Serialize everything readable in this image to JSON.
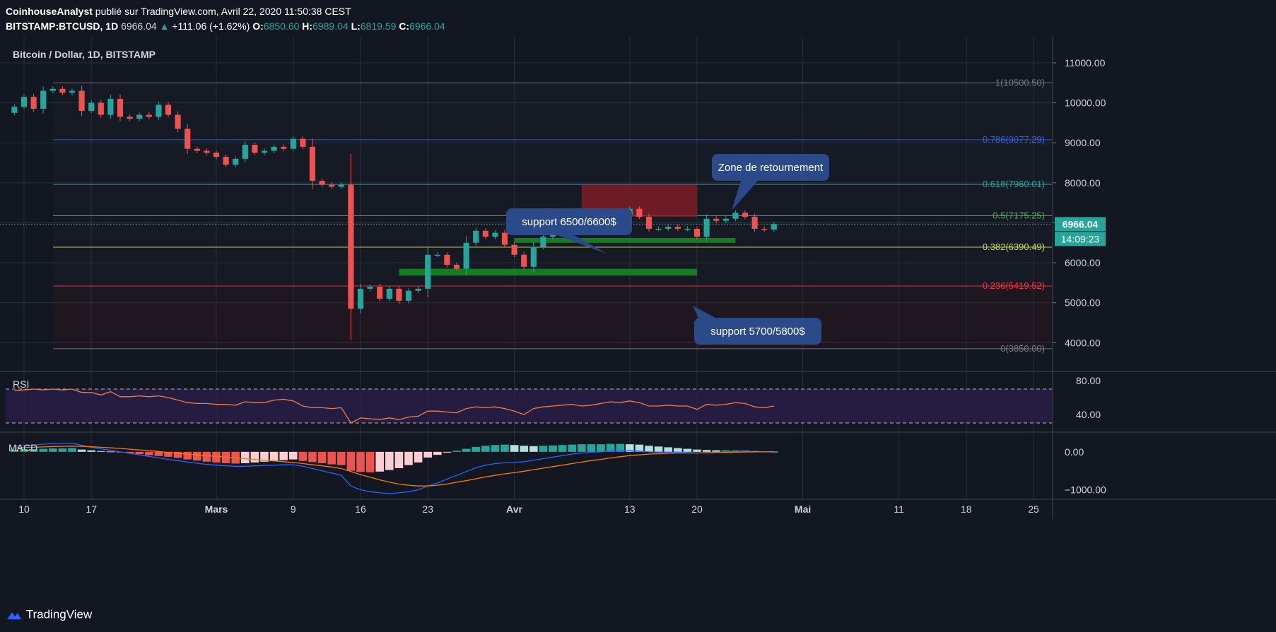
{
  "header": {
    "author": "CoinhouseAnalyst",
    "published_text": "publié sur TradingView.com, Avril 22, 2020 11:50:38 CEST",
    "symbol": "BITSTAMP:BTCUSD, 1D",
    "last_price": "6966.04",
    "change": "+111.06 (+1.62%)",
    "o_label": "O:",
    "o": "6850.60",
    "h_label": "H:",
    "h": "6989.04",
    "l_label": "L:",
    "l": "6819.59",
    "c_label": "C:",
    "c": "6966.04"
  },
  "footer": {
    "brand": "TradingView"
  },
  "chart_data": {
    "type": "candlestick",
    "title": "Bitcoin / Dollar, 1D, BITSTAMP",
    "price_axis": {
      "ticks": [
        4000,
        5000,
        6000,
        7000,
        8000,
        9000,
        10000,
        11000
      ],
      "tick_labels": [
        "4000.00",
        "5000.00",
        "6000.00",
        "7000.00",
        "8000.00",
        "9000.00",
        "10000.00",
        "11000.00"
      ],
      "range": [
        3300,
        11600
      ]
    },
    "time_axis": {
      "labels": [
        "10",
        "17",
        "Mars",
        "9",
        "16",
        "23",
        "Avr",
        "13",
        "20",
        "Mai",
        "11",
        "18",
        "25"
      ],
      "label_dates": [
        "2020-02-10",
        "2020-02-17",
        "2020-03-01",
        "2020-03-09",
        "2020-03-16",
        "2020-03-23",
        "2020-04-01",
        "2020-04-13",
        "2020-04-20",
        "2020-05-01",
        "2020-05-11",
        "2020-05-18",
        "2020-05-25"
      ],
      "first_candle_date": "2020-02-09"
    },
    "colors": {
      "up": "#26a69a",
      "down": "#ef5350",
      "background": "#131722",
      "grid": "#2a2e39"
    },
    "candles_close": [
      9900,
      10150,
      9850,
      10300,
      10350,
      10250,
      10300,
      9800,
      10000,
      9700,
      10100,
      9650,
      9600,
      9700,
      9650,
      9950,
      9700,
      9350,
      8850,
      8800,
      8750,
      8650,
      8450,
      8600,
      8950,
      8750,
      8800,
      8900,
      8850,
      9100,
      8900,
      8050,
      7950,
      7900,
      7950,
      4850,
      5350,
      5400,
      5100,
      5350,
      5050,
      5300,
      5350,
      6200,
      6200,
      5950,
      5850,
      6500,
      6800,
      6650,
      6750,
      6450,
      6200,
      5900,
      6400,
      6650,
      6750,
      6950,
      7100,
      6850,
      7000,
      7150,
      7300,
      7200,
      7350,
      7150,
      6850,
      6850,
      6900,
      6850,
      6850,
      6650,
      7100,
      7050,
      7100,
      7250,
      7150,
      6850,
      6830,
      6966
    ],
    "fibonacci": {
      "label_texts": [
        "1(10500.50)",
        "0.786(9077.29)",
        "0.618(7960.01)",
        "0.5(7175.25)",
        "0.382(6390.49)",
        "0.236(5419.52)",
        "0(3850.00)"
      ],
      "levels": [
        10500.5,
        9077.29,
        7960.01,
        7175.25,
        6390.49,
        5419.52,
        3850
      ],
      "colors": [
        "#787b86",
        "#2962ff",
        "#26a69a",
        "#4caf50",
        "#cddc39",
        "#f23645",
        "#787b86"
      ]
    },
    "zones": [
      {
        "name": "resistance-zone",
        "start": "2020-04-08",
        "end": "2020-04-20",
        "low": 7150,
        "high": 7950,
        "color": "#8b1e25"
      },
      {
        "name": "support-zone-6500",
        "start": "2020-04-01",
        "end": "2020-04-24",
        "low": 6500,
        "high": 6620,
        "color": "#138a1e"
      },
      {
        "name": "support-zone-5700",
        "start": "2020-03-20",
        "end": "2020-04-20",
        "low": 5680,
        "high": 5850,
        "color": "#138a1e"
      }
    ],
    "annotations": [
      {
        "text": "Zone de retournement"
      },
      {
        "text": "support 6500/6600$"
      },
      {
        "text": "support 5700/5800$"
      }
    ],
    "last_price_label": "6966.04",
    "countdown_label": "14:09:23",
    "rsi": {
      "label": "RSI",
      "ticks": [
        40,
        80
      ],
      "tick_labels": [
        "40.00",
        "80.00"
      ],
      "band": [
        30,
        70
      ],
      "range": [
        20,
        90
      ],
      "values": [
        68,
        69,
        70,
        69,
        70,
        69,
        70,
        66,
        66,
        63,
        67,
        61,
        61,
        62,
        61,
        62,
        60,
        57,
        54,
        53,
        53,
        52,
        52,
        51,
        55,
        54,
        54,
        57,
        58,
        56,
        50,
        48,
        48,
        47,
        48,
        30,
        36,
        35,
        34,
        36,
        34,
        37,
        38,
        44,
        44,
        43,
        42,
        47,
        49,
        48,
        49,
        47,
        44,
        40,
        47,
        49,
        50,
        51,
        52,
        50,
        51,
        53,
        55,
        54,
        56,
        54,
        50,
        50,
        51,
        50,
        50,
        46,
        52,
        51,
        52,
        54,
        53,
        49,
        48,
        50
      ]
    },
    "macd": {
      "label": "MACD",
      "ticks": [
        0,
        -1000
      ],
      "tick_labels": [
        "0.00",
        "−1000.00"
      ],
      "range": [
        -1250,
        500
      ],
      "histogram": [
        60,
        70,
        70,
        80,
        90,
        90,
        100,
        60,
        40,
        20,
        10,
        -10,
        -40,
        -60,
        -90,
        -110,
        -130,
        -160,
        -200,
        -230,
        -260,
        -280,
        -300,
        -310,
        -300,
        -280,
        -260,
        -240,
        -220,
        -200,
        -240,
        -270,
        -300,
        -330,
        -350,
        -500,
        -530,
        -540,
        -520,
        -480,
        -430,
        -350,
        -280,
        -150,
        -80,
        -20,
        30,
        80,
        130,
        160,
        180,
        190,
        180,
        160,
        150,
        160,
        170,
        180,
        190,
        200,
        200,
        200,
        210,
        210,
        200,
        190,
        160,
        140,
        120,
        100,
        80,
        60,
        50,
        40,
        40,
        40,
        30,
        20,
        10,
        5
      ],
      "macd_line": [
        150,
        160,
        180,
        200,
        220,
        220,
        230,
        170,
        120,
        80,
        40,
        0,
        -40,
        -80,
        -120,
        -160,
        -200,
        -230,
        -270,
        -300,
        -330,
        -350,
        -370,
        -380,
        -380,
        -370,
        -360,
        -350,
        -340,
        -340,
        -380,
        -440,
        -500,
        -560,
        -620,
        -900,
        -1000,
        -1050,
        -1080,
        -1100,
        -1080,
        -1050,
        -1000,
        -900,
        -820,
        -720,
        -620,
        -520,
        -420,
        -350,
        -310,
        -290,
        -280,
        -260,
        -220,
        -180,
        -140,
        -100,
        -60,
        -30,
        -10,
        0,
        20,
        30,
        30,
        20,
        0,
        -10,
        -10,
        -10,
        -20,
        -30,
        -20,
        -10,
        0,
        10,
        10,
        0,
        0,
        5
      ],
      "signal_line": [
        100,
        110,
        120,
        130,
        140,
        145,
        150,
        145,
        135,
        120,
        105,
        90,
        70,
        50,
        30,
        10,
        -20,
        -40,
        -60,
        -80,
        -100,
        -120,
        -140,
        -160,
        -180,
        -200,
        -220,
        -240,
        -260,
        -280,
        -310,
        -340,
        -370,
        -400,
        -440,
        -520,
        -600,
        -670,
        -740,
        -800,
        -850,
        -880,
        -900,
        -900,
        -880,
        -850,
        -800,
        -760,
        -710,
        -660,
        -620,
        -580,
        -550,
        -510,
        -470,
        -430,
        -390,
        -350,
        -310,
        -270,
        -230,
        -200,
        -160,
        -130,
        -100,
        -80,
        -60,
        -50,
        -40,
        -30,
        -30,
        -30,
        -25,
        -20,
        -15,
        -10,
        -5,
        0,
        0,
        5
      ]
    }
  }
}
